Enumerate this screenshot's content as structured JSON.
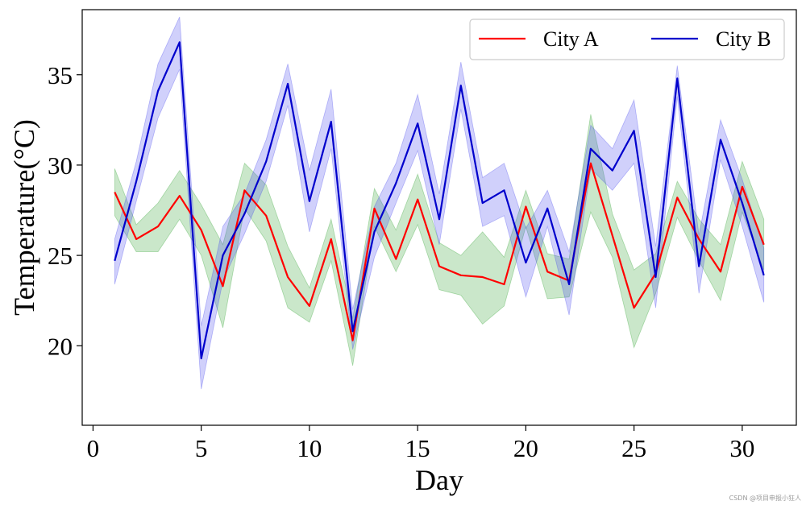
{
  "chart_data": {
    "type": "line",
    "title": "",
    "xlabel": "Day",
    "ylabel": "Temperature(°C)",
    "xlim": [
      -0.5,
      32.5
    ],
    "ylim": [
      15.6,
      38.6
    ],
    "xticks": [
      0,
      5,
      10,
      15,
      20,
      25,
      30
    ],
    "yticks": [
      20,
      25,
      30,
      35
    ],
    "grid": false,
    "legend": {
      "placement": "top-right",
      "columns": 2
    },
    "x": [
      1,
      2,
      3,
      4,
      5,
      6,
      7,
      8,
      9,
      10,
      11,
      12,
      13,
      14,
      15,
      16,
      17,
      18,
      19,
      20,
      21,
      22,
      23,
      24,
      25,
      26,
      27,
      28,
      29,
      30,
      31
    ],
    "series": [
      {
        "name": "City A",
        "color": "#ff0000",
        "band_color": "#2ca02c",
        "values": [
          28.5,
          25.9,
          26.6,
          28.3,
          26.4,
          23.3,
          28.6,
          27.2,
          23.8,
          22.2,
          25.9,
          20.3,
          27.6,
          24.8,
          28.1,
          24.4,
          23.9,
          23.8,
          23.4,
          27.7,
          24.1,
          23.6,
          30.1,
          26.1,
          22.1,
          24.0,
          28.2,
          25.9,
          24.1,
          28.8,
          25.6
        ],
        "lower": [
          27.2,
          25.2,
          25.2,
          27.0,
          25.0,
          21.0,
          27.6,
          25.8,
          22.1,
          21.3,
          24.7,
          18.9,
          26.6,
          24.1,
          26.7,
          23.1,
          22.8,
          21.2,
          22.2,
          26.6,
          22.6,
          22.7,
          27.4,
          24.9,
          19.9,
          22.9,
          27.1,
          24.7,
          22.5,
          27.4,
          24.2
        ],
        "upper": [
          29.8,
          26.7,
          27.9,
          29.7,
          27.8,
          25.6,
          30.1,
          28.9,
          25.5,
          23.2,
          27.0,
          21.5,
          28.7,
          26.4,
          29.5,
          25.7,
          25.0,
          26.3,
          24.9,
          28.6,
          25.1,
          24.8,
          32.8,
          27.3,
          24.2,
          25.1,
          29.1,
          27.0,
          25.6,
          30.2,
          27.0
        ]
      },
      {
        "name": "City B",
        "color": "#0000cc",
        "band_color": "#4444ee",
        "values": [
          24.7,
          29.1,
          34.1,
          36.8,
          19.3,
          25.0,
          27.3,
          30.2,
          34.5,
          28.0,
          32.4,
          20.8,
          26.3,
          29.0,
          32.3,
          27.0,
          34.4,
          27.9,
          28.6,
          24.6,
          27.6,
          23.4,
          30.9,
          29.7,
          31.9,
          23.8,
          34.8,
          24.4,
          31.4,
          27.9,
          23.9
        ],
        "lower": [
          23.4,
          28.0,
          32.6,
          35.3,
          17.6,
          23.6,
          26.2,
          29.1,
          33.3,
          26.3,
          30.9,
          19.8,
          24.9,
          27.9,
          30.8,
          25.6,
          33.1,
          26.6,
          27.2,
          22.7,
          26.6,
          21.7,
          29.8,
          28.6,
          30.1,
          22.1,
          33.8,
          22.9,
          30.3,
          26.6,
          22.4
        ],
        "upper": [
          25.9,
          30.2,
          35.6,
          38.2,
          21.1,
          26.6,
          28.4,
          31.4,
          35.6,
          29.7,
          34.2,
          22.0,
          27.7,
          30.1,
          33.9,
          28.4,
          35.7,
          29.3,
          30.1,
          26.5,
          28.6,
          25.2,
          32.2,
          30.9,
          33.6,
          25.5,
          35.5,
          26.1,
          32.5,
          29.2,
          25.4
        ]
      }
    ]
  },
  "watermark": "CSDN @项目申报小狂人"
}
